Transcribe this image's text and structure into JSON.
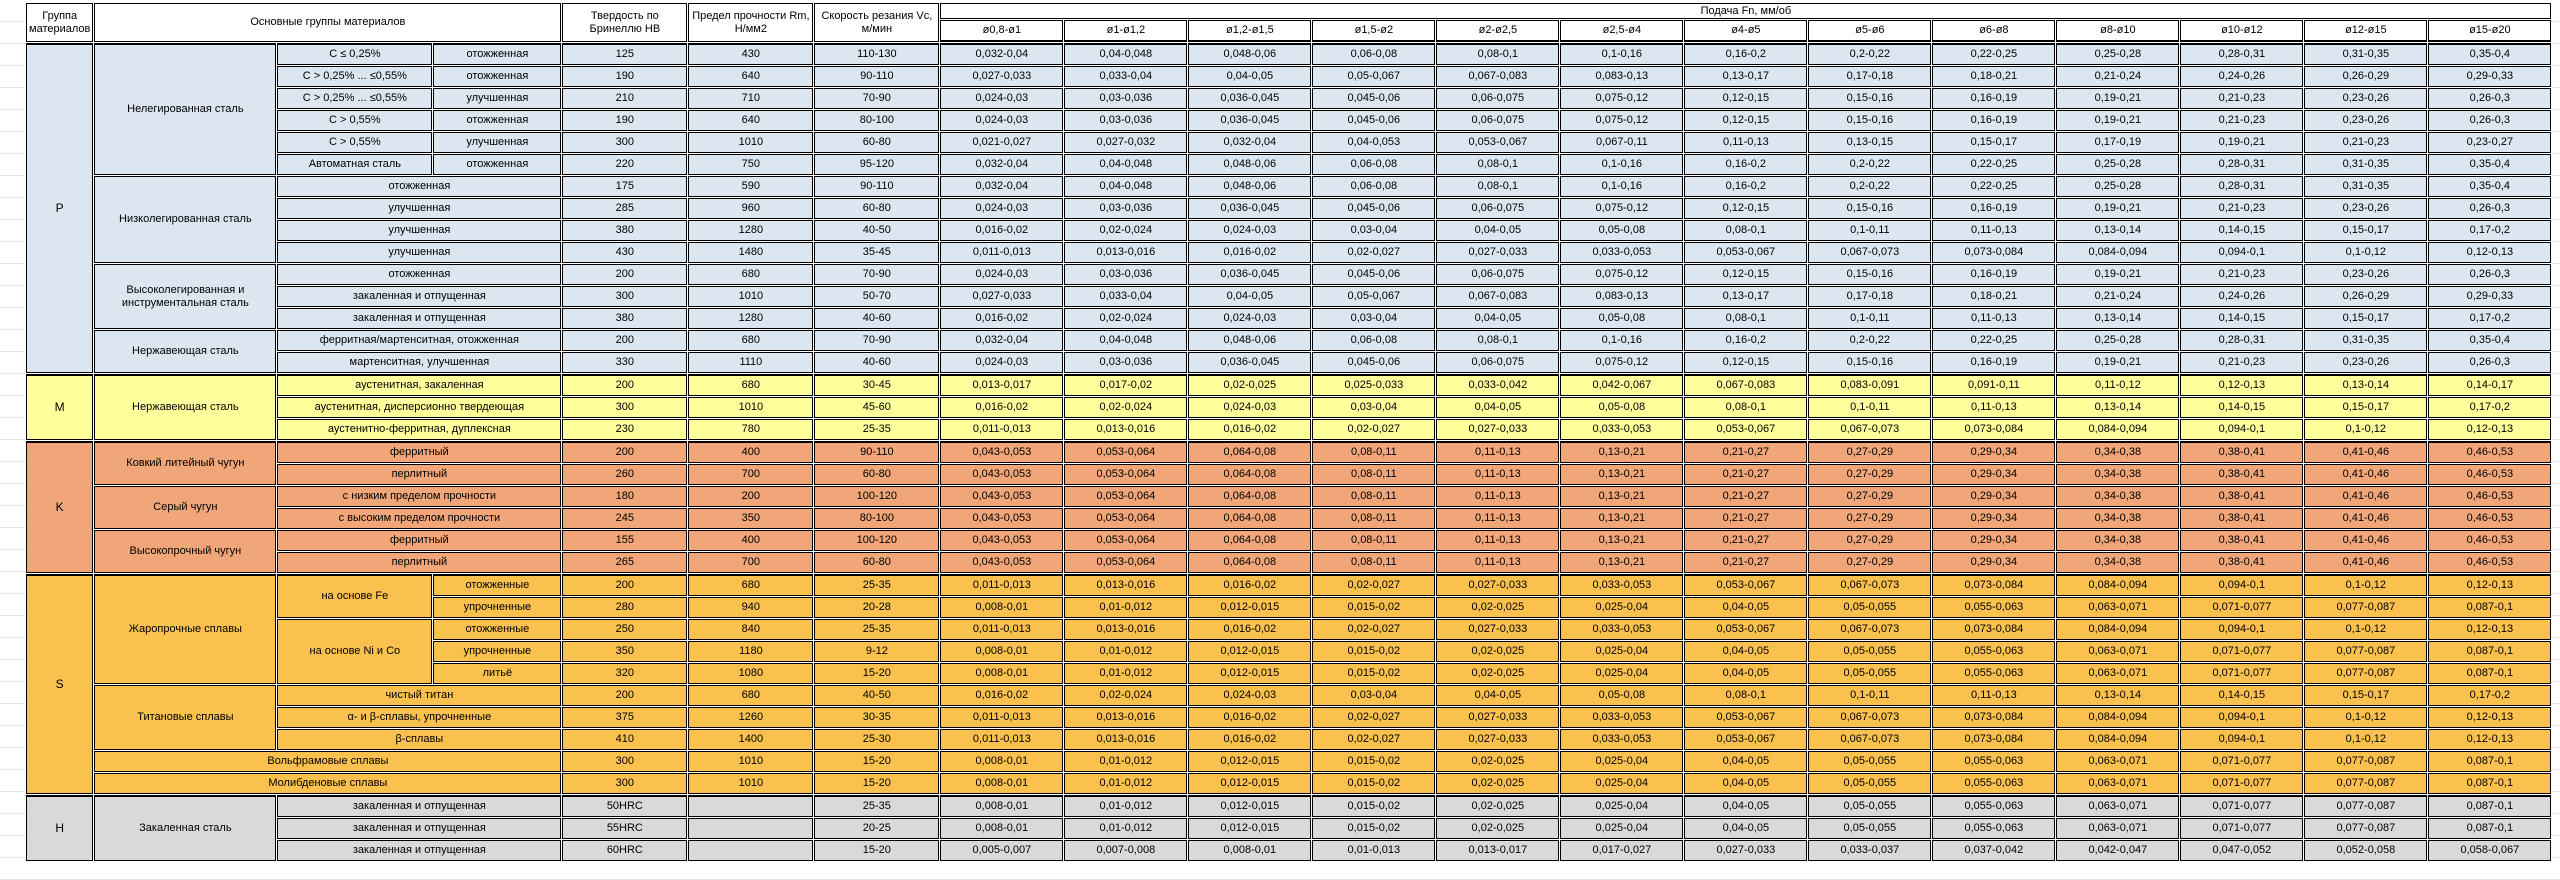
{
  "table": {
    "header": {
      "col_group": "Группа материалов",
      "col_materials": "Основные группы материалов",
      "col_hb": "Твердость по Бринеллю HB",
      "col_rm": "Предел прочности Rm, Н/мм2",
      "col_vc": "Скорость резания Vc, м/мин",
      "feed_title": "Подача Fn, мм/об",
      "feed_cols": [
        "ø0,8-ø1",
        "ø1-ø1,2",
        "ø1,2-ø1,5",
        "ø1,5-ø2",
        "ø2-ø2,5",
        "ø2,5-ø4",
        "ø4-ø5",
        "ø5-ø6",
        "ø6-ø8",
        "ø8-ø10",
        "ø10-ø12",
        "ø12-ø15",
        "ø15-ø20"
      ]
    },
    "colors": {
      "p": "#DCE6F1",
      "m": "#FFFF9C",
      "k": "#F0A678",
      "s": "#FAC14E",
      "h": "#D9D9D9"
    },
    "feed_patterns": {
      "p1": [
        "0,032-0,04",
        "0,04-0,048",
        "0,048-0,06",
        "0,06-0,08",
        "0,08-0,1",
        "0,1-0,16",
        "0,16-0,2",
        "0,2-0,22",
        "0,22-0,25",
        "0,25-0,28",
        "0,28-0,31",
        "0,31-0,35",
        "0,35-0,4"
      ],
      "p2": [
        "0,027-0,033",
        "0,033-0,04",
        "0,04-0,05",
        "0,05-0,067",
        "0,067-0,083",
        "0,083-0,13",
        "0,13-0,17",
        "0,17-0,18",
        "0,18-0,21",
        "0,21-0,24",
        "0,24-0,26",
        "0,26-0,29",
        "0,29-0,33"
      ],
      "p3": [
        "0,024-0,03",
        "0,03-0,036",
        "0,036-0,045",
        "0,045-0,06",
        "0,06-0,075",
        "0,075-0,12",
        "0,12-0,15",
        "0,15-0,16",
        "0,16-0,19",
        "0,19-0,21",
        "0,21-0,23",
        "0,23-0,26",
        "0,26-0,3"
      ],
      "p4": [
        "0,021-0,027",
        "0,027-0,032",
        "0,032-0,04",
        "0,04-0,053",
        "0,053-0,067",
        "0,067-0,11",
        "0,11-0,13",
        "0,13-0,15",
        "0,15-0,17",
        "0,17-0,19",
        "0,19-0,21",
        "0,21-0,23",
        "0,23-0,27"
      ],
      "p5": [
        "0,016-0,02",
        "0,02-0,024",
        "0,024-0,03",
        "0,03-0,04",
        "0,04-0,05",
        "0,05-0,08",
        "0,08-0,1",
        "0,1-0,11",
        "0,11-0,13",
        "0,13-0,14",
        "0,14-0,15",
        "0,15-0,17",
        "0,17-0,2"
      ],
      "p6": [
        "0,011-0,013",
        "0,013-0,016",
        "0,016-0,02",
        "0,02-0,027",
        "0,027-0,033",
        "0,033-0,053",
        "0,053-0,067",
        "0,067-0,073",
        "0,073-0,084",
        "0,084-0,094",
        "0,094-0,1",
        "0,1-0,12",
        "0,12-0,13"
      ],
      "m1": [
        "0,013-0,017",
        "0,017-0,02",
        "0,02-0,025",
        "0,025-0,033",
        "0,033-0,042",
        "0,042-0,067",
        "0,067-0,083",
        "0,083-0,091",
        "0,091-0,11",
        "0,11-0,12",
        "0,12-0,13",
        "0,13-0,14",
        "0,14-0,17"
      ],
      "k1": [
        "0,043-0,053",
        "0,053-0,064",
        "0,064-0,08",
        "0,08-0,11",
        "0,11-0,13",
        "0,13-0,21",
        "0,21-0,27",
        "0,27-0,29",
        "0,29-0,34",
        "0,34-0,38",
        "0,38-0,41",
        "0,41-0,46",
        "0,46-0,53"
      ],
      "s1": [
        "0,008-0,01",
        "0,01-0,012",
        "0,012-0,015",
        "0,015-0,02",
        "0,02-0,025",
        "0,025-0,04",
        "0,04-0,05",
        "0,05-0,055",
        "0,055-0,063",
        "0,063-0,071",
        "0,071-0,077",
        "0,077-0,087",
        "0,087-0,1"
      ],
      "h3": [
        "0,005-0,007",
        "0,007-0,008",
        "0,008-0,01",
        "0,01-0,013",
        "0,013-0,017",
        "0,017-0,027",
        "0,027-0,033",
        "0,033-0,037",
        "0,037-0,042",
        "0,042-0,047",
        "0,047-0,052",
        "0,052-0,058",
        "0,058-0,067"
      ]
    },
    "groups": [
      {
        "letter": "P",
        "color_key": "p",
        "families": [
          {
            "name": "Нелегированная сталь",
            "rows": [
              {
                "labels": [
                  {
                    "t": "С ≤ 0,25%"
                  },
                  {
                    "t": "отожженная"
                  }
                ],
                "hb": "125",
                "rm": "430",
                "vc": "110-130",
                "fp": "p1"
              },
              {
                "labels": [
                  {
                    "t": "С > 0,25% ... ≤0,55%"
                  },
                  {
                    "t": "отожженная"
                  }
                ],
                "hb": "190",
                "rm": "640",
                "vc": "90-110",
                "fp": "p2"
              },
              {
                "labels": [
                  {
                    "t": "С > 0,25% ... ≤0,55%"
                  },
                  {
                    "t": "улучшенная"
                  }
                ],
                "hb": "210",
                "rm": "710",
                "vc": "70-90",
                "fp": "p3"
              },
              {
                "labels": [
                  {
                    "t": "С > 0,55%"
                  },
                  {
                    "t": "отожженная"
                  }
                ],
                "hb": "190",
                "rm": "640",
                "vc": "80-100",
                "fp": "p3"
              },
              {
                "labels": [
                  {
                    "t": "С > 0,55%"
                  },
                  {
                    "t": "улучшенная"
                  }
                ],
                "hb": "300",
                "rm": "1010",
                "vc": "60-80",
                "fp": "p4"
              },
              {
                "labels": [
                  {
                    "t": "Автоматная сталь"
                  },
                  {
                    "t": "отожженная"
                  }
                ],
                "hb": "220",
                "rm": "750",
                "vc": "95-120",
                "fp": "p1"
              }
            ]
          },
          {
            "name": "Низколегированная сталь",
            "rows": [
              {
                "labels": [
                  {
                    "t": "отожженная",
                    "cs": 2
                  }
                ],
                "hb": "175",
                "rm": "590",
                "vc": "90-110",
                "fp": "p1"
              },
              {
                "labels": [
                  {
                    "t": "улучшенная",
                    "cs": 2
                  }
                ],
                "hb": "285",
                "rm": "960",
                "vc": "60-80",
                "fp": "p3"
              },
              {
                "labels": [
                  {
                    "t": "улучшенная",
                    "cs": 2
                  }
                ],
                "hb": "380",
                "rm": "1280",
                "vc": "40-50",
                "fp": "p5"
              },
              {
                "labels": [
                  {
                    "t": "улучшенная",
                    "cs": 2
                  }
                ],
                "hb": "430",
                "rm": "1480",
                "vc": "35-45",
                "fp": "p6"
              }
            ]
          },
          {
            "name": "Высоколегированная и инструментальная сталь",
            "rows": [
              {
                "labels": [
                  {
                    "t": "отожженная",
                    "cs": 2
                  }
                ],
                "hb": "200",
                "rm": "680",
                "vc": "70-90",
                "fp": "p3"
              },
              {
                "labels": [
                  {
                    "t": "закаленная и отпущенная",
                    "cs": 2
                  }
                ],
                "hb": "300",
                "rm": "1010",
                "vc": "50-70",
                "fp": "p2"
              },
              {
                "labels": [
                  {
                    "t": "закаленная и отпущенная",
                    "cs": 2
                  }
                ],
                "hb": "380",
                "rm": "1280",
                "vc": "40-60",
                "fp": "p5"
              }
            ]
          },
          {
            "name": "Нержавеющая сталь",
            "rows": [
              {
                "labels": [
                  {
                    "t": "ферритная/мартенситная, отожженная",
                    "cs": 2
                  }
                ],
                "hb": "200",
                "rm": "680",
                "vc": "70-90",
                "fp": "p1"
              },
              {
                "labels": [
                  {
                    "t": "мартенситная, улучшенная",
                    "cs": 2
                  }
                ],
                "hb": "330",
                "rm": "1110",
                "vc": "40-60",
                "fp": "p3"
              }
            ]
          }
        ]
      },
      {
        "letter": "M",
        "color_key": "m",
        "families": [
          {
            "name": "Нержавеющая сталь",
            "rows": [
              {
                "labels": [
                  {
                    "t": "аустенитная, закаленная",
                    "cs": 2
                  }
                ],
                "hb": "200",
                "rm": "680",
                "vc": "30-45",
                "fp": "m1"
              },
              {
                "labels": [
                  {
                    "t": "аустенитная, дисперсионно твердеющая",
                    "cs": 2
                  }
                ],
                "hb": "300",
                "rm": "1010",
                "vc": "45-60",
                "fp": "p5"
              },
              {
                "labels": [
                  {
                    "t": "аустенитно-ферритная, дуплексная",
                    "cs": 2
                  }
                ],
                "hb": "230",
                "rm": "780",
                "vc": "25-35",
                "fp": "p6"
              }
            ]
          }
        ]
      },
      {
        "letter": "K",
        "color_key": "k",
        "families": [
          {
            "name": "Ковкий литейный чугун",
            "rows": [
              {
                "labels": [
                  {
                    "t": "ферритный",
                    "cs": 2
                  }
                ],
                "hb": "200",
                "rm": "400",
                "vc": "90-110",
                "fp": "k1"
              },
              {
                "labels": [
                  {
                    "t": "перлитный",
                    "cs": 2
                  }
                ],
                "hb": "260",
                "rm": "700",
                "vc": "60-80",
                "fp": "k1"
              }
            ]
          },
          {
            "name": "Серый чугун",
            "rows": [
              {
                "labels": [
                  {
                    "t": "с низким пределом прочности",
                    "cs": 2
                  }
                ],
                "hb": "180",
                "rm": "200",
                "vc": "100-120",
                "fp": "k1"
              },
              {
                "labels": [
                  {
                    "t": "с высоким пределом прочности",
                    "cs": 2
                  }
                ],
                "hb": "245",
                "rm": "350",
                "vc": "80-100",
                "fp": "k1"
              }
            ]
          },
          {
            "name": "Высокопрочный чугун",
            "rows": [
              {
                "labels": [
                  {
                    "t": "ферритный",
                    "cs": 2
                  }
                ],
                "hb": "155",
                "rm": "400",
                "vc": "100-120",
                "fp": "k1"
              },
              {
                "labels": [
                  {
                    "t": "перлитный",
                    "cs": 2
                  }
                ],
                "hb": "265",
                "rm": "700",
                "vc": "60-80",
                "fp": "k1"
              }
            ]
          }
        ]
      },
      {
        "letter": "S",
        "color_key": "s",
        "families": [
          {
            "name": "Жаропрочные сплавы",
            "rows": [
              {
                "labels": [
                  {
                    "t": "на основе Fe",
                    "rs": 2
                  },
                  {
                    "t": "отожженные"
                  }
                ],
                "hb": "200",
                "rm": "680",
                "vc": "25-35",
                "fp": "p6"
              },
              {
                "labels": [
                  {
                    "t": "упрочненные"
                  }
                ],
                "hb": "280",
                "rm": "940",
                "vc": "20-28",
                "fp": "s1"
              },
              {
                "labels": [
                  {
                    "t": "на основе Ni и Co",
                    "rs": 3
                  },
                  {
                    "t": "отожженные"
                  }
                ],
                "hb": "250",
                "rm": "840",
                "vc": "25-35",
                "fp": "p6"
              },
              {
                "labels": [
                  {
                    "t": "упрочненные"
                  }
                ],
                "hb": "350",
                "rm": "1180",
                "vc": "9-12",
                "fp": "s1"
              },
              {
                "labels": [
                  {
                    "t": "литьё"
                  }
                ],
                "hb": "320",
                "rm": "1080",
                "vc": "15-20",
                "fp": "s1"
              }
            ]
          },
          {
            "name": "Титановые сплавы",
            "rows": [
              {
                "labels": [
                  {
                    "t": "чистый титан",
                    "cs": 2
                  }
                ],
                "hb": "200",
                "rm": "680",
                "vc": "40-50",
                "fp": "p5"
              },
              {
                "labels": [
                  {
                    "t": "α- и β-сплавы, упрочненные",
                    "cs": 2
                  }
                ],
                "hb": "375",
                "rm": "1260",
                "vc": "30-35",
                "fp": "p6"
              },
              {
                "labels": [
                  {
                    "t": "β-сплавы",
                    "cs": 2
                  }
                ],
                "hb": "410",
                "rm": "1400",
                "vc": "25-30",
                "fp": "p6"
              }
            ]
          },
          {
            "name": null,
            "rows": [
              {
                "labels": [
                  {
                    "t": "Вольфрамовые сплавы",
                    "cs": 3
                  }
                ],
                "hb": "300",
                "rm": "1010",
                "vc": "15-20",
                "fp": "s1"
              }
            ]
          },
          {
            "name": null,
            "rows": [
              {
                "labels": [
                  {
                    "t": "Молибденовые сплавы",
                    "cs": 3
                  }
                ],
                "hb": "300",
                "rm": "1010",
                "vc": "15-20",
                "fp": "s1"
              }
            ]
          }
        ]
      },
      {
        "letter": "H",
        "color_key": "h",
        "families": [
          {
            "name": "Закаленная сталь",
            "rows": [
              {
                "labels": [
                  {
                    "t": "закаленная и отпущенная",
                    "cs": 2
                  }
                ],
                "hb": "50HRC",
                "rm": "",
                "vc": "25-35",
                "fp": "s1"
              },
              {
                "labels": [
                  {
                    "t": "закаленная и отпущенная",
                    "cs": 2
                  }
                ],
                "hb": "55HRC",
                "rm": "",
                "vc": "20-25",
                "fp": "s1"
              },
              {
                "labels": [
                  {
                    "t": "закаленная и отпущенная",
                    "cs": 2
                  }
                ],
                "hb": "60HRC",
                "rm": "",
                "vc": "15-20",
                "fp": "h3"
              }
            ]
          }
        ]
      }
    ]
  }
}
